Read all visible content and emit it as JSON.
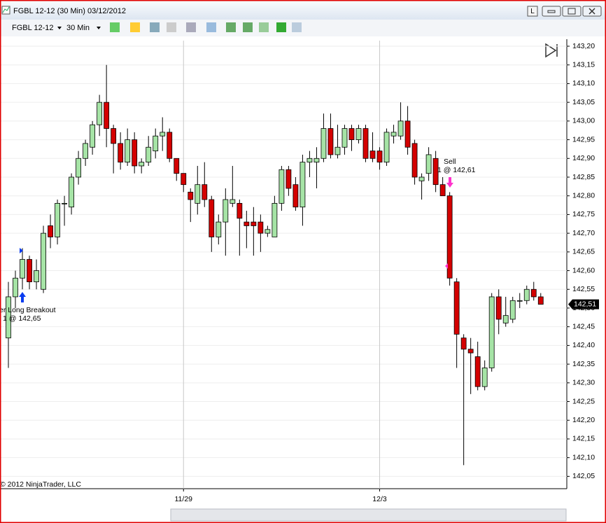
{
  "window": {
    "title": "FGBL 12-12 (30 Min)  03/12/2012",
    "button": "L"
  },
  "toolbar": {
    "instrument": "FGBL 12-12",
    "interval": "30 Min"
  },
  "chart_data": {
    "type": "candlestick",
    "up_color": "#a6e4a6",
    "down_color": "#d40000",
    "categories": [
      null,
      null,
      null,
      null,
      null,
      null,
      null,
      null,
      null,
      null,
      null,
      null,
      null,
      null,
      null,
      null,
      null,
      null,
      null,
      null,
      null,
      null,
      null,
      null,
      null,
      "11/29",
      null,
      null,
      null,
      null,
      null,
      null,
      null,
      null,
      null,
      null,
      null,
      null,
      null,
      null,
      null,
      null,
      null,
      null,
      null,
      null,
      null,
      null,
      null,
      null,
      null,
      null,
      null,
      "12/3",
      null,
      null,
      null,
      null,
      null,
      null,
      null,
      null,
      null,
      null,
      null,
      null,
      null,
      null,
      null,
      null,
      null,
      null,
      null,
      null,
      null,
      null,
      null
    ],
    "open": [
      142.42,
      142.53,
      142.58,
      142.63,
      142.57,
      142.55,
      142.72,
      142.69,
      142.78,
      142.77,
      142.85,
      142.9,
      142.93,
      142.99,
      143.05,
      142.98,
      142.94,
      142.89,
      142.95,
      142.88,
      142.89,
      142.92,
      142.96,
      142.97,
      142.9,
      142.86,
      142.81,
      142.78,
      142.83,
      142.79,
      142.69,
      142.73,
      142.78,
      142.78,
      142.73,
      142.73,
      142.73,
      142.7,
      142.69,
      142.78,
      142.87,
      142.83,
      142.77,
      142.89,
      142.89,
      142.9,
      142.98,
      142.91,
      142.93,
      142.98,
      142.95,
      142.98,
      142.92,
      142.92,
      142.89,
      142.96,
      142.96,
      143.0,
      142.94,
      142.84,
      142.86,
      142.9,
      142.83,
      142.8,
      142.57,
      142.42,
      142.39,
      142.37,
      142.29,
      142.34,
      142.53,
      142.46,
      142.47,
      142.52,
      142.52,
      142.55,
      142.53
    ],
    "high": [
      142.57,
      142.6,
      142.66,
      142.64,
      142.63,
      142.72,
      142.75,
      142.79,
      142.8,
      142.86,
      142.92,
      142.95,
      143.0,
      143.07,
      143.15,
      142.99,
      142.97,
      142.98,
      142.97,
      142.9,
      142.96,
      142.98,
      143.01,
      142.98,
      142.9,
      142.86,
      142.82,
      142.88,
      142.89,
      142.8,
      142.75,
      142.82,
      142.88,
      142.79,
      142.76,
      142.77,
      142.75,
      142.72,
      142.8,
      142.88,
      142.88,
      142.85,
      142.91,
      142.92,
      142.93,
      143.02,
      143.02,
      142.99,
      142.99,
      142.99,
      142.99,
      142.99,
      142.97,
      142.93,
      142.98,
      142.99,
      143.05,
      143.04,
      142.95,
      142.86,
      142.93,
      142.92,
      142.85,
      142.81,
      142.58,
      142.43,
      142.42,
      142.41,
      142.36,
      142.54,
      142.55,
      142.53,
      142.53,
      142.54,
      142.56,
      142.57,
      142.54
    ],
    "low": [
      142.34,
      142.5,
      142.55,
      142.55,
      142.55,
      142.54,
      142.66,
      142.67,
      142.72,
      142.75,
      142.83,
      142.88,
      142.91,
      142.96,
      142.93,
      142.86,
      142.87,
      142.88,
      142.86,
      142.86,
      142.88,
      142.9,
      142.92,
      142.89,
      142.84,
      142.81,
      142.73,
      142.75,
      142.77,
      142.65,
      142.67,
      142.64,
      142.77,
      142.64,
      142.66,
      142.64,
      142.65,
      142.69,
      142.69,
      142.76,
      142.8,
      142.76,
      142.72,
      142.85,
      142.82,
      142.89,
      142.9,
      142.9,
      142.91,
      142.92,
      142.94,
      142.89,
      142.89,
      142.87,
      142.88,
      142.94,
      142.95,
      142.91,
      142.83,
      142.79,
      142.84,
      142.81,
      142.8,
      142.56,
      142.34,
      142.08,
      142.27,
      142.28,
      142.28,
      142.33,
      142.43,
      142.45,
      142.46,
      142.5,
      142.51,
      142.52,
      142.51
    ],
    "close": [
      142.53,
      142.58,
      142.63,
      142.57,
      142.6,
      142.7,
      142.69,
      142.78,
      142.78,
      142.85,
      142.9,
      142.94,
      142.99,
      143.05,
      142.98,
      142.94,
      142.89,
      142.95,
      142.88,
      142.89,
      142.93,
      142.96,
      142.97,
      142.9,
      142.86,
      142.83,
      142.79,
      142.83,
      142.79,
      142.69,
      142.73,
      142.79,
      142.79,
      142.74,
      142.72,
      142.72,
      142.7,
      142.71,
      142.78,
      142.87,
      142.82,
      142.77,
      142.89,
      142.9,
      142.9,
      142.98,
      142.91,
      142.93,
      142.98,
      142.95,
      142.98,
      142.9,
      142.9,
      142.89,
      142.97,
      142.97,
      143.0,
      142.93,
      142.85,
      142.85,
      142.91,
      142.83,
      142.8,
      142.58,
      142.43,
      142.39,
      142.38,
      142.29,
      142.34,
      142.53,
      142.47,
      142.48,
      142.52,
      142.52,
      142.55,
      142.53,
      142.51
    ],
    "ylim": [
      142.017,
      143.215
    ],
    "yticks": [
      {
        "value": 143.2,
        "label": "143,20"
      },
      {
        "value": 143.15,
        "label": "143,15"
      },
      {
        "value": 143.1,
        "label": "143,10"
      },
      {
        "value": 143.05,
        "label": "143,05"
      },
      {
        "value": 143.0,
        "label": "143,00"
      },
      {
        "value": 142.95,
        "label": "142,95"
      },
      {
        "value": 142.9,
        "label": "142,90"
      },
      {
        "value": 142.85,
        "label": "142,85"
      },
      {
        "value": 142.8,
        "label": "142,80"
      },
      {
        "value": 142.75,
        "label": "142,75"
      },
      {
        "value": 142.7,
        "label": "142,70"
      },
      {
        "value": 142.65,
        "label": "142,65"
      },
      {
        "value": 142.6,
        "label": "142,60"
      },
      {
        "value": 142.55,
        "label": "142,55"
      },
      {
        "value": 142.5,
        "label": "142,50"
      },
      {
        "value": 142.45,
        "label": "142,45"
      },
      {
        "value": 142.4,
        "label": "142,40"
      },
      {
        "value": 142.35,
        "label": "142,35"
      },
      {
        "value": 142.3,
        "label": "142,30"
      },
      {
        "value": 142.25,
        "label": "142,25"
      },
      {
        "value": 142.2,
        "label": "142,20"
      },
      {
        "value": 142.15,
        "label": "142,15"
      },
      {
        "value": 142.1,
        "label": "142,10"
      },
      {
        "value": 142.05,
        "label": "142,05"
      }
    ],
    "grid": true,
    "last_price": {
      "value": 142.51,
      "label": "142,51"
    },
    "annotations": [
      "er Long Breakout",
      "1 @ 142,65",
      "Sell",
      "1 @ 142,61"
    ],
    "copyright": "© 2012 NinjaTrader, LLC"
  }
}
